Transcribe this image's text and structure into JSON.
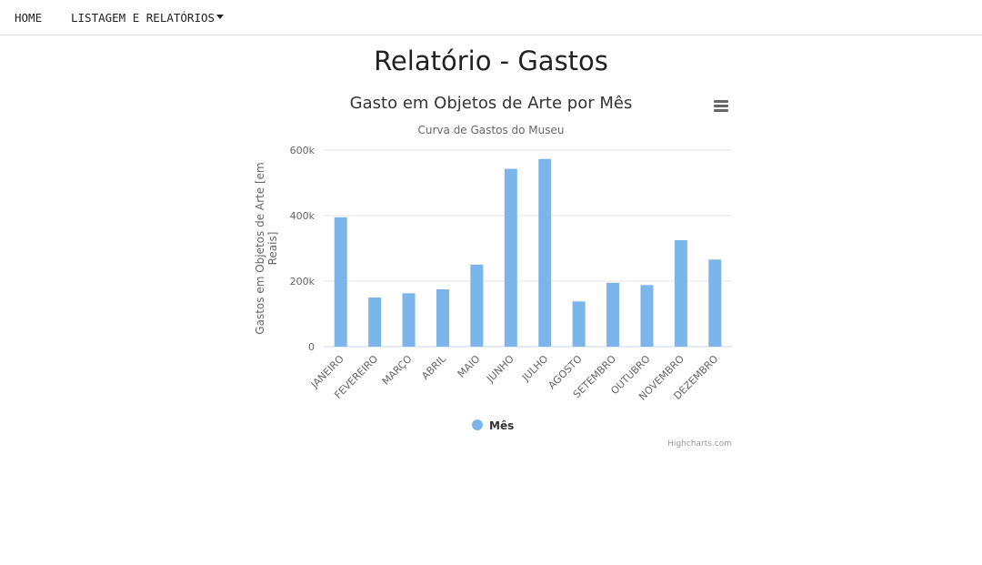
{
  "nav": {
    "home": "HOME",
    "reports": "LISTAGEM E RELATÓRIOS"
  },
  "page_title": "Relatório - Gastos",
  "menu_icon": "hamburger-menu-icon",
  "credits": "Highcharts.com",
  "colors": {
    "bar": "#7cb5ec",
    "grid": "#e6e6e6",
    "axis_text": "#666666",
    "title_text": "#333333"
  },
  "chart_data": {
    "type": "bar",
    "title": "Gasto em Objetos de Arte por Mês",
    "subtitle": "Curva de Gastos do Museu",
    "ylabel": "Gastos em Objetos de Arte [em Reais]",
    "xlabel": "",
    "ylim": [
      0,
      600000
    ],
    "yticks": [
      {
        "value": 0,
        "label": "0"
      },
      {
        "value": 200000,
        "label": "200k"
      },
      {
        "value": 400000,
        "label": "400k"
      },
      {
        "value": 600000,
        "label": "600k"
      }
    ],
    "grid": true,
    "legend_position": "bottom-center",
    "categories": [
      "JANEIRO",
      "FEVEREIRO",
      "MARÇO",
      "ABRIL",
      "MAIO",
      "JUNHO",
      "JULHO",
      "AGOSTO",
      "SETEMBRO",
      "OUTUBRO",
      "NOVEMBRO",
      "DEZEMBRO"
    ],
    "series": [
      {
        "name": "Mês",
        "values": [
          395000,
          150000,
          163000,
          175000,
          250000,
          543000,
          573000,
          138000,
          195000,
          188000,
          325000,
          266000
        ]
      }
    ]
  }
}
